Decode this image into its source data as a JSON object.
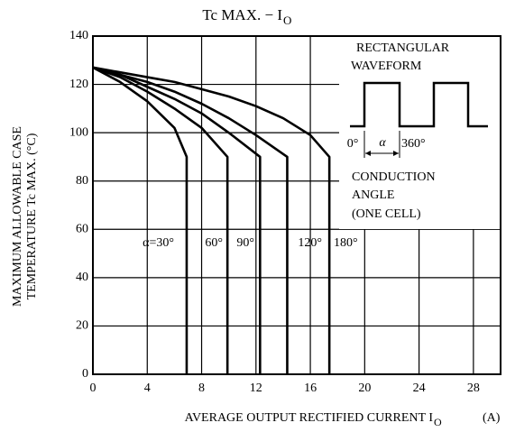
{
  "chart_data": {
    "type": "line",
    "title": "Tc MAX. − I",
    "title_subscript": "O",
    "xlabel": "AVERAGE OUTPUT RECTIFIED CURRENT  I",
    "xlabel_subscript": "O",
    "xlabel_unit": "(A)",
    "ylabel": [
      "MAXIMUM ALLOWABLE CASE",
      "TEMPERATURE   Tc MAX.  (°C)"
    ],
    "xlim": [
      0,
      30
    ],
    "ylim": [
      0,
      140
    ],
    "xticks": [
      0,
      4,
      8,
      12,
      16,
      20,
      24,
      28
    ],
    "yticks": [
      0,
      20,
      40,
      60,
      80,
      100,
      120,
      140
    ],
    "grid": true,
    "series": [
      {
        "name": "α=30°",
        "color": "#000000",
        "x": [
          0,
          2,
          4,
          6,
          6.9,
          6.9
        ],
        "y": [
          127,
          121,
          113,
          102,
          90,
          0
        ]
      },
      {
        "name": "60°",
        "color": "#000000",
        "x": [
          0,
          2,
          4,
          6,
          8,
          9.9,
          9.9
        ],
        "y": [
          127,
          123,
          117,
          110,
          102,
          90,
          0
        ]
      },
      {
        "name": "90°",
        "color": "#000000",
        "x": [
          0,
          2,
          4,
          6,
          8,
          10,
          12.3,
          12.3
        ],
        "y": [
          127,
          124,
          119,
          114,
          108,
          100,
          90,
          0
        ]
      },
      {
        "name": "120°",
        "color": "#000000",
        "x": [
          0,
          2,
          4,
          6,
          8,
          10,
          12,
          14.3,
          14.3
        ],
        "y": [
          127,
          124,
          121,
          117,
          112,
          106,
          99,
          90,
          0
        ]
      },
      {
        "name": "180°",
        "color": "#000000",
        "x": [
          0,
          2,
          4,
          6,
          8,
          10,
          12,
          14,
          16,
          17.4,
          17.4
        ],
        "y": [
          127,
          125,
          123,
          121,
          118,
          115,
          111,
          106,
          99,
          90,
          0
        ]
      }
    ],
    "annotations": [
      "RECTANGULAR",
      "WAVEFORM",
      "0°",
      "α",
      "360°",
      "CONDUCTION",
      "ANGLE",
      "(ONE CELL)"
    ]
  }
}
